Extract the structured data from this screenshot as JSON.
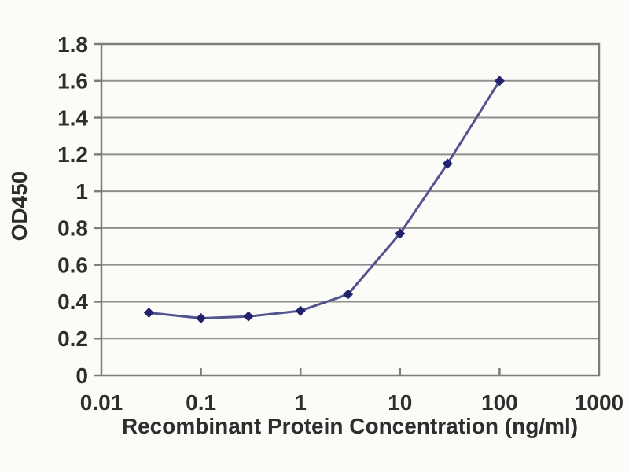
{
  "chart_data": {
    "type": "line",
    "title": "",
    "series": [
      {
        "name": "OD450 vs concentration",
        "x": [
          0.03,
          0.1,
          0.3,
          1,
          3,
          10,
          30,
          100
        ],
        "y": [
          0.34,
          0.31,
          0.32,
          0.35,
          0.44,
          0.77,
          1.15,
          1.6
        ]
      }
    ],
    "x_scale": "log",
    "xlim": [
      0.01,
      1000
    ],
    "ylim": [
      0,
      1.8
    ],
    "x_tick_values": [
      0.01,
      0.1,
      1,
      10,
      100,
      1000
    ],
    "x_tick_labels": [
      "0.01",
      "0.1",
      "1",
      "10",
      "100",
      "1000"
    ],
    "y_tick_values": [
      0,
      0.2,
      0.4,
      0.6,
      0.8,
      1,
      1.2,
      1.4,
      1.6,
      1.8
    ],
    "y_tick_labels": [
      "0",
      "0.2",
      "0.4",
      "0.6",
      "0.8",
      "1",
      "1.2",
      "1.4",
      "1.6",
      "1.8"
    ],
    "xlabel": "Recombinant Protein Concentration (ng/ml)",
    "ylabel": "OD450",
    "grid": "horizontal",
    "legend_position": "none",
    "marker": "diamond",
    "colors": {
      "background": "#fbfbf8",
      "line": "#53538f",
      "marker": "#22226b",
      "gridline": "#8f8f8f",
      "axis_box": "#7c7c7c",
      "text": "#2d2d2d"
    }
  }
}
